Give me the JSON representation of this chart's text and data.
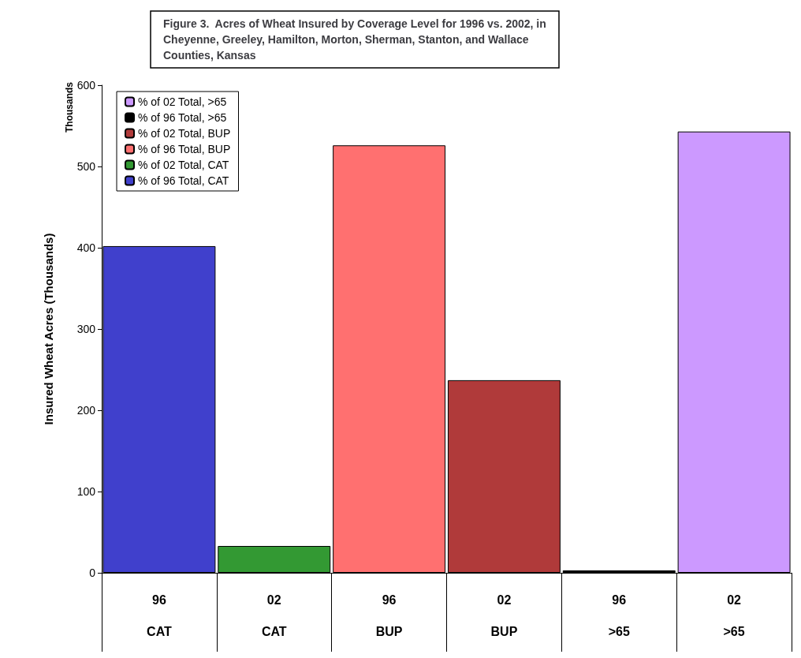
{
  "chart_data": {
    "type": "bar",
    "title": "Figure 3.  Acres of Wheat Insured by Coverage Level for 1996 vs. 2002, in\nCheyenne, Greeley, Hamilton, Morton, Sherman, Stanton, and Wallace\nCounties, Kansas",
    "ylabel": "Insured Wheat Acres (Thousands)",
    "annotations": [
      "Thousands"
    ],
    "categories": [
      "96\n\nCAT",
      "02\n\nCAT",
      "96\n\nBUP",
      "02\n\nBUP",
      "96\n\n>65",
      "02\n\n>65"
    ],
    "series": [
      {
        "name": "% of 02 Total, >65",
        "color": "#cc99ff",
        "values": [
          null,
          null,
          null,
          null,
          null,
          543
        ]
      },
      {
        "name": "% of 96 Total, >65",
        "color": "#000000",
        "values": [
          null,
          null,
          null,
          null,
          3,
          null
        ]
      },
      {
        "name": "% of 02 Total, BUP",
        "color": "#b03a3a",
        "values": [
          null,
          null,
          null,
          237,
          null,
          null
        ]
      },
      {
        "name": "% of 96 Total, BUP",
        "color": "#ff7070",
        "values": [
          null,
          null,
          526,
          null,
          null,
          null
        ]
      },
      {
        "name": "% of 02 Total, CAT",
        "color": "#339933",
        "values": [
          null,
          33,
          null,
          null,
          null,
          null
        ]
      },
      {
        "name": "% of 96 Total, CAT",
        "color": "#4040cc",
        "values": [
          402,
          null,
          null,
          null,
          null,
          null
        ]
      }
    ],
    "ylim": [
      0,
      600
    ],
    "yticks": [
      0,
      100,
      200,
      300,
      400,
      500,
      600
    ],
    "grid": false,
    "legend": "top left"
  }
}
